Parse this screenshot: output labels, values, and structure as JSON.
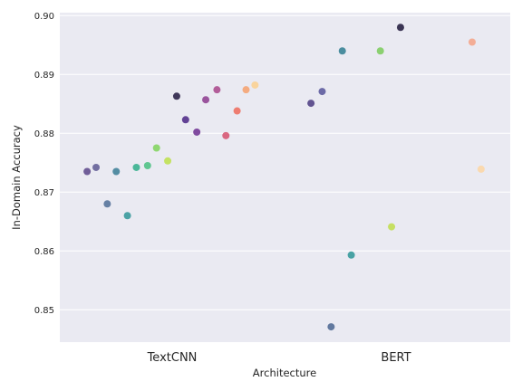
{
  "chart_data": {
    "type": "scatter",
    "xlabel": "Architecture",
    "ylabel": "In-Domain Accuracy",
    "categories": [
      "TextCNN",
      "BERT"
    ],
    "ylim": [
      0.8445,
      0.9005
    ],
    "yticks": [
      0.85,
      0.86,
      0.87,
      0.88,
      0.89,
      0.9
    ],
    "ytick_labels": [
      "0.85",
      "0.86",
      "0.87",
      "0.88",
      "0.89",
      "0.90"
    ],
    "grid": true,
    "background": "#eaeaf2",
    "points": [
      {
        "category": "TextCNN",
        "offset": -0.38,
        "y": 0.8735,
        "color": "#5b4589"
      },
      {
        "category": "TextCNN",
        "offset": -0.34,
        "y": 0.8742,
        "color": "#5d5893"
      },
      {
        "category": "TextCNN",
        "offset": -0.29,
        "y": 0.868,
        "color": "#4f6d96"
      },
      {
        "category": "TextCNN",
        "offset": -0.25,
        "y": 0.8735,
        "color": "#3a7d95"
      },
      {
        "category": "TextCNN",
        "offset": -0.2,
        "y": 0.866,
        "color": "#2f9598"
      },
      {
        "category": "TextCNN",
        "offset": -0.16,
        "y": 0.8742,
        "color": "#2fae8a"
      },
      {
        "category": "TextCNN",
        "offset": -0.11,
        "y": 0.8745,
        "color": "#48c080"
      },
      {
        "category": "TextCNN",
        "offset": -0.07,
        "y": 0.8775,
        "color": "#7fd35a"
      },
      {
        "category": "TextCNN",
        "offset": -0.02,
        "y": 0.8753,
        "color": "#bde14a"
      },
      {
        "category": "TextCNN",
        "offset": 0.02,
        "y": 0.8863,
        "color": "#22193f"
      },
      {
        "category": "TextCNN",
        "offset": 0.06,
        "y": 0.8823,
        "color": "#4a2585"
      },
      {
        "category": "TextCNN",
        "offset": 0.11,
        "y": 0.8802,
        "color": "#6c2e90"
      },
      {
        "category": "TextCNN",
        "offset": 0.15,
        "y": 0.8857,
        "color": "#8c3a8e"
      },
      {
        "category": "TextCNN",
        "offset": 0.2,
        "y": 0.8874,
        "color": "#a8448a"
      },
      {
        "category": "TextCNN",
        "offset": 0.24,
        "y": 0.8796,
        "color": "#d6506d"
      },
      {
        "category": "TextCNN",
        "offset": 0.29,
        "y": 0.8838,
        "color": "#ee6a5a"
      },
      {
        "category": "TextCNN",
        "offset": 0.33,
        "y": 0.8874,
        "color": "#f6a06c"
      },
      {
        "category": "TextCNN",
        "offset": 0.37,
        "y": 0.8882,
        "color": "#fcd08e"
      },
      {
        "category": "BERT",
        "offset": -0.38,
        "y": 0.8851,
        "color": "#4a3a80"
      },
      {
        "category": "BERT",
        "offset": -0.33,
        "y": 0.8871,
        "color": "#56549a"
      },
      {
        "category": "BERT",
        "offset": -0.29,
        "y": 0.8471,
        "color": "#4a6590"
      },
      {
        "category": "BERT",
        "offset": -0.24,
        "y": 0.894,
        "color": "#2f7c90"
      },
      {
        "category": "BERT",
        "offset": -0.2,
        "y": 0.8593,
        "color": "#2d9596"
      },
      {
        "category": "BERT",
        "offset": -0.07,
        "y": 0.894,
        "color": "#7acb5a"
      },
      {
        "category": "BERT",
        "offset": -0.02,
        "y": 0.8641,
        "color": "#c0dd4a"
      },
      {
        "category": "BERT",
        "offset": 0.02,
        "y": 0.898,
        "color": "#1c1538"
      },
      {
        "category": "BERT",
        "offset": 0.34,
        "y": 0.8955,
        "color": "#f5a286"
      },
      {
        "category": "BERT",
        "offset": 0.38,
        "y": 0.8739,
        "color": "#fdd6a3"
      }
    ]
  }
}
